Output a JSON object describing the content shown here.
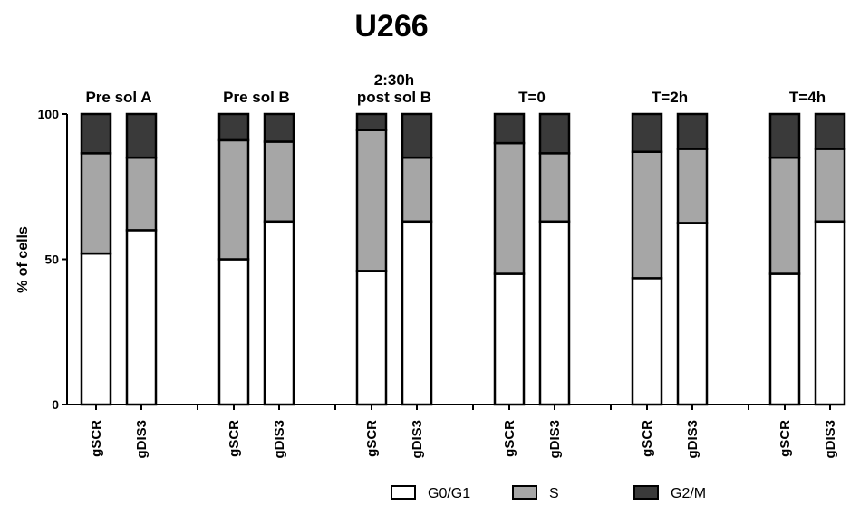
{
  "chart_data": {
    "type": "bar",
    "stacked": true,
    "title": "U266",
    "ylabel": "% of cells",
    "ylim": [
      0,
      100
    ],
    "yticks": [
      0,
      50,
      100
    ],
    "groups": [
      {
        "label": [
          "Pre sol A"
        ],
        "bars": [
          "gSCR",
          "gDIS3"
        ]
      },
      {
        "label": [
          "Pre sol B"
        ],
        "bars": [
          "gSCR",
          "gDIS3"
        ]
      },
      {
        "label": [
          "2:30h",
          "post sol B"
        ],
        "bars": [
          "gSCR",
          "gDIS3"
        ]
      },
      {
        "label": [
          "T=0"
        ],
        "bars": [
          "gSCR",
          "gDIS3"
        ]
      },
      {
        "label": [
          "T=2h"
        ],
        "bars": [
          "gSCR",
          "gDIS3"
        ]
      },
      {
        "label": [
          "T=4h"
        ],
        "bars": [
          "gSCR",
          "gDIS3"
        ]
      }
    ],
    "categories": [
      "gSCR",
      "gDIS3",
      "gSCR",
      "gDIS3",
      "gSCR",
      "gDIS3",
      "gSCR",
      "gDIS3",
      "gSCR",
      "gDIS3",
      "gSCR",
      "gDIS3"
    ],
    "series": [
      {
        "name": "G0/G1",
        "color": "#ffffff",
        "values": [
          52,
          60,
          50,
          63,
          46,
          63,
          45,
          63,
          43.5,
          62.5,
          45,
          63
        ]
      },
      {
        "name": "S",
        "color": "#a6a6a6",
        "values": [
          34.5,
          25,
          41,
          27.5,
          48.5,
          22,
          45,
          23.5,
          43.5,
          25.5,
          40,
          25
        ]
      },
      {
        "name": "G2/M",
        "color": "#3a3a3a",
        "values": [
          13.5,
          15,
          9,
          9.5,
          5.5,
          15,
          10,
          13.5,
          13,
          12,
          15,
          12
        ]
      }
    ],
    "legend_position": "bottom"
  }
}
